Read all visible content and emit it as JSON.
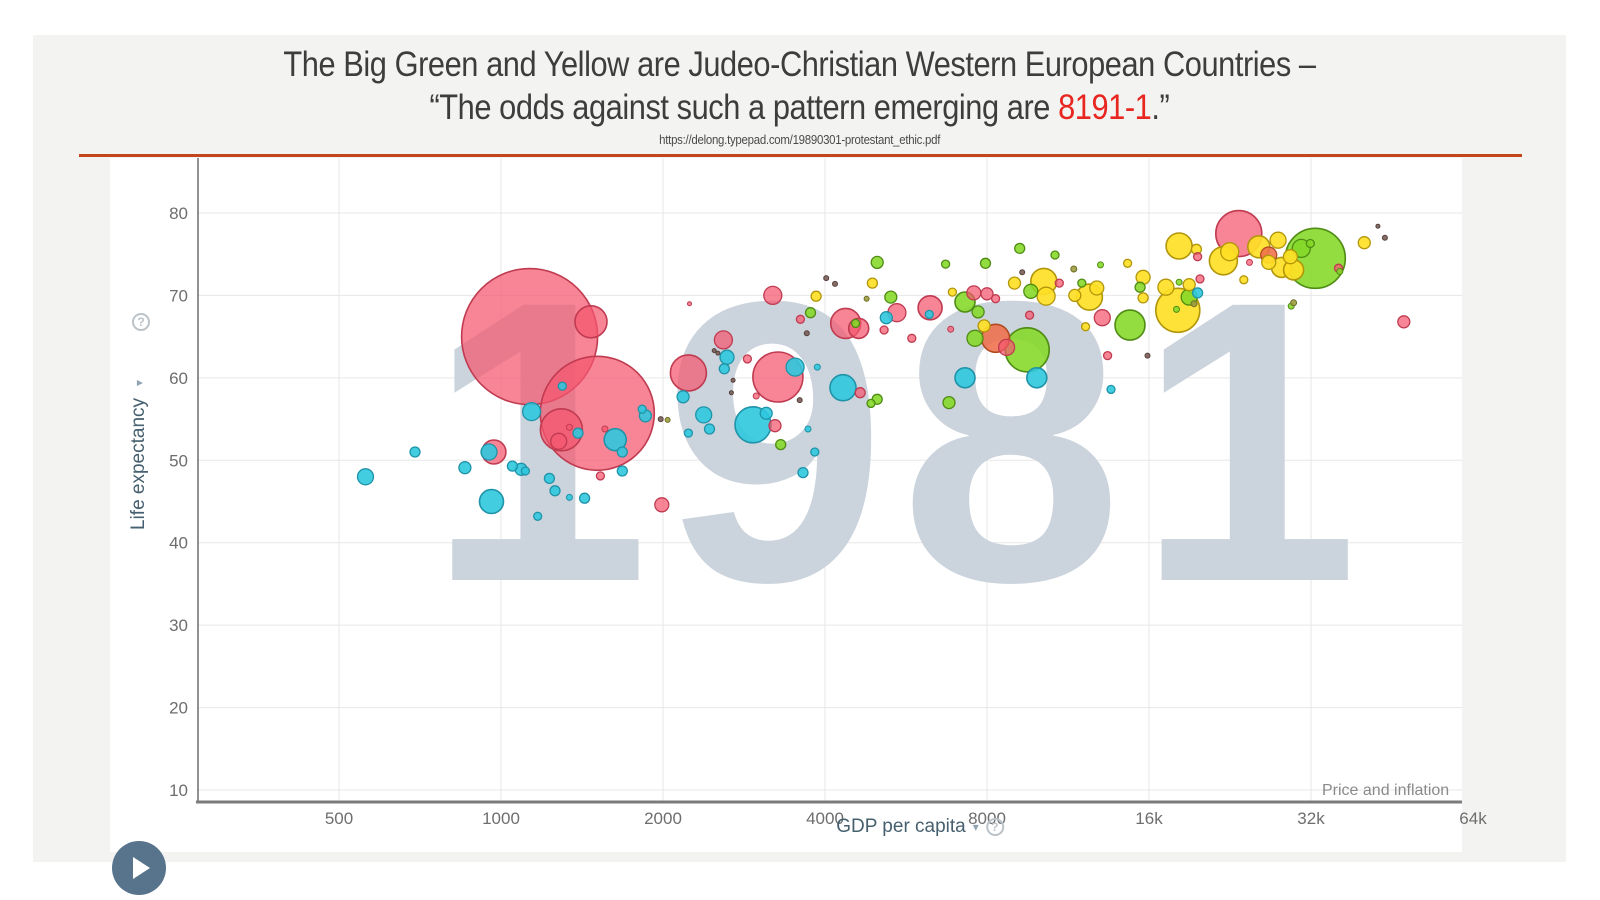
{
  "slide": {
    "title_line1": "The Big Green and Yellow are Judeo-Christian Western European Countries –",
    "title_line2_before": "“The odds against such a pattern emerging are ",
    "title_line2_highlight": "8191-1",
    "title_line2_after": ".”",
    "title_color": "#3d3d3d",
    "highlight_color": "#e8251f",
    "source_url": "https://delong.typepad.com/19890301-protestant_ethic.pdf",
    "divider_color": "#c2451c",
    "background": "#f3f3f1"
  },
  "chart": {
    "x_axis_label": "GDP per capita",
    "y_axis_label": "Life expectancy",
    "caret_glyph": "▾",
    "help_glyph": "?",
    "annotation": "Price and inflation",
    "watermark": "1981",
    "watermark_color": "#cbd3dc"
  },
  "chart_data": {
    "type": "scatter",
    "subtype": "bubble",
    "title": "",
    "xlabel": "GDP per capita",
    "ylabel": "Life expectancy",
    "x_scale": "log2",
    "x_range": [
      280,
      64000
    ],
    "y_range": [
      10,
      85
    ],
    "grid": true,
    "legend": false,
    "watermark": "1981",
    "annotation": "Price and inflation",
    "x_ticks": [
      {
        "value": 500,
        "label": "500"
      },
      {
        "value": 1000,
        "label": "1000"
      },
      {
        "value": 2000,
        "label": "2000"
      },
      {
        "value": 4000,
        "label": "4000"
      },
      {
        "value": 8000,
        "label": "8000"
      },
      {
        "value": 16000,
        "label": "16k"
      },
      {
        "value": 32000,
        "label": "32k"
      },
      {
        "value": 64000,
        "label": "64k"
      }
    ],
    "y_ticks": [
      10,
      20,
      30,
      40,
      50,
      60,
      70,
      80
    ],
    "palette": {
      "red": {
        "fill": "#f4566d",
        "stroke": "#c03a50",
        "opacity": 0.72
      },
      "cyan": {
        "fill": "#2fc8de",
        "stroke": "#1f93a8",
        "opacity": 0.9
      },
      "green": {
        "fill": "#84d827",
        "stroke": "#4f8c14",
        "opacity": 0.88
      },
      "yellow": {
        "fill": "#ffdf26",
        "stroke": "#b2960a",
        "opacity": 0.92
      },
      "orange": {
        "fill": "#ef6e4b",
        "stroke": "#b04a20",
        "opacity": 0.88
      },
      "dark": {
        "fill": "#7a5c55",
        "stroke": "#54403b",
        "opacity": 0.9
      },
      "olive": {
        "fill": "#9c9c40",
        "stroke": "#6d6d25",
        "opacity": 0.9
      }
    },
    "bubble_fields": [
      "gdp_per_capita",
      "life_expectancy",
      "radius_px",
      "color"
    ],
    "bubbles": [
      [
        1130,
        65,
        68,
        "red"
      ],
      [
        1470,
        66.8,
        16,
        "red"
      ],
      [
        1510,
        55.7,
        57,
        "red"
      ],
      [
        1295,
        53.7,
        21,
        "red"
      ],
      [
        1280,
        52.3,
        8,
        "red"
      ],
      [
        1340,
        54,
        3,
        "red"
      ],
      [
        1560,
        53.8,
        3,
        "red"
      ],
      [
        970,
        51,
        12,
        "red"
      ],
      [
        1990,
        44.6,
        7,
        "red"
      ],
      [
        1530,
        48.1,
        4,
        "red"
      ],
      [
        2230,
        60.6,
        18,
        "red"
      ],
      [
        2590,
        64.6,
        9,
        "red"
      ],
      [
        2870,
        62.3,
        4,
        "red"
      ],
      [
        3200,
        70,
        9,
        "red"
      ],
      [
        3270,
        60.1,
        25,
        "red"
      ],
      [
        2980,
        57.8,
        3,
        "red"
      ],
      [
        3230,
        54.2,
        6,
        "red"
      ],
      [
        4650,
        58.2,
        5,
        "red"
      ],
      [
        3600,
        67.1,
        4,
        "red"
      ],
      [
        4370,
        66.6,
        15,
        "red"
      ],
      [
        4620,
        66,
        10,
        "red"
      ],
      [
        5440,
        67.9,
        9,
        "red"
      ],
      [
        5150,
        65.8,
        4,
        "red"
      ],
      [
        5800,
        64.8,
        4,
        "red"
      ],
      [
        6270,
        68.5,
        12,
        "red"
      ],
      [
        6850,
        65.9,
        3,
        "red"
      ],
      [
        7560,
        70.3,
        7,
        "red"
      ],
      [
        8000,
        70.2,
        6,
        "red"
      ],
      [
        8300,
        69.6,
        4,
        "red"
      ],
      [
        9600,
        67.6,
        4,
        "red"
      ],
      [
        13100,
        67.3,
        8,
        "red"
      ],
      [
        13400,
        62.7,
        4,
        "red"
      ],
      [
        8700,
        63.7,
        8,
        "red"
      ],
      [
        19700,
        74.7,
        4,
        "red"
      ],
      [
        19900,
        72,
        4,
        "red"
      ],
      [
        23500,
        77.5,
        23,
        "red"
      ],
      [
        24600,
        74,
        3,
        "red"
      ],
      [
        36000,
        73.3,
        4,
        "red"
      ],
      [
        47600,
        66.8,
        6,
        "red"
      ],
      [
        10900,
        71.5,
        4,
        "red"
      ],
      [
        2240,
        69,
        2,
        "red"
      ],
      [
        8300,
        64.8,
        14,
        "orange"
      ],
      [
        26700,
        74.9,
        8,
        "orange"
      ],
      [
        560,
        48,
        8,
        "cyan"
      ],
      [
        692,
        51,
        5,
        "cyan"
      ],
      [
        857,
        49.1,
        6,
        "cyan"
      ],
      [
        950,
        51,
        8,
        "cyan"
      ],
      [
        960,
        45,
        12,
        "cyan"
      ],
      [
        1050,
        49.3,
        5,
        "cyan"
      ],
      [
        1090,
        48.9,
        6,
        "cyan"
      ],
      [
        1110,
        48.7,
        4,
        "cyan"
      ],
      [
        1140,
        55.9,
        9,
        "cyan"
      ],
      [
        1230,
        47.8,
        5,
        "cyan"
      ],
      [
        1260,
        46.3,
        5,
        "cyan"
      ],
      [
        1170,
        43.2,
        4,
        "cyan"
      ],
      [
        1300,
        59,
        4,
        "cyan"
      ],
      [
        1340,
        45.5,
        3,
        "cyan"
      ],
      [
        1430,
        45.4,
        5,
        "cyan"
      ],
      [
        1390,
        53.3,
        5,
        "cyan"
      ],
      [
        1630,
        52.5,
        11,
        "cyan"
      ],
      [
        1680,
        51,
        5,
        "cyan"
      ],
      [
        1680,
        48.7,
        5,
        "cyan"
      ],
      [
        1830,
        56.2,
        4,
        "cyan"
      ],
      [
        1855,
        55.4,
        6,
        "cyan"
      ],
      [
        2180,
        57.7,
        6,
        "cyan"
      ],
      [
        2380,
        55.5,
        8,
        "cyan"
      ],
      [
        2440,
        53.8,
        5,
        "cyan"
      ],
      [
        2230,
        53.3,
        4,
        "cyan"
      ],
      [
        2630,
        62.5,
        7,
        "cyan"
      ],
      [
        2600,
        61.1,
        5,
        "cyan"
      ],
      [
        2940,
        54.3,
        18,
        "cyan"
      ],
      [
        3110,
        55.7,
        6,
        "cyan"
      ],
      [
        3520,
        61.3,
        9,
        "cyan"
      ],
      [
        3870,
        61.3,
        3,
        "cyan"
      ],
      [
        4320,
        58.8,
        13,
        "cyan"
      ],
      [
        3720,
        53.8,
        3,
        "cyan"
      ],
      [
        3640,
        48.5,
        5,
        "cyan"
      ],
      [
        3830,
        51,
        4,
        "cyan"
      ],
      [
        5200,
        67.3,
        6,
        "cyan"
      ],
      [
        6250,
        67.7,
        4,
        "cyan"
      ],
      [
        7280,
        60,
        10,
        "cyan"
      ],
      [
        9900,
        60,
        10,
        "cyan"
      ],
      [
        13600,
        58.6,
        4,
        "cyan"
      ],
      [
        19700,
        70.3,
        5,
        "cyan"
      ],
      [
        3310,
        51.9,
        5,
        "green"
      ],
      [
        5000,
        57.4,
        5,
        "green"
      ],
      [
        4870,
        56.9,
        4,
        "green"
      ],
      [
        6800,
        57,
        6,
        "green"
      ],
      [
        3760,
        67.9,
        5,
        "green"
      ],
      [
        5300,
        69.8,
        6,
        "green"
      ],
      [
        4560,
        66.6,
        4,
        "green"
      ],
      [
        5000,
        74,
        6,
        "green"
      ],
      [
        6700,
        73.8,
        4,
        "green"
      ],
      [
        7950,
        73.9,
        5,
        "green"
      ],
      [
        9200,
        75.7,
        5,
        "green"
      ],
      [
        10700,
        74.9,
        4,
        "green"
      ],
      [
        7280,
        69.2,
        10,
        "green"
      ],
      [
        7700,
        68,
        6,
        "green"
      ],
      [
        7600,
        64.8,
        8,
        "green"
      ],
      [
        9650,
        70.5,
        7,
        "green"
      ],
      [
        9500,
        63.4,
        22,
        "green"
      ],
      [
        12000,
        71.5,
        4,
        "green"
      ],
      [
        13000,
        73.7,
        3,
        "green"
      ],
      [
        14750,
        66.4,
        15,
        "green"
      ],
      [
        15400,
        71,
        5,
        "green"
      ],
      [
        18000,
        68.3,
        3,
        "green"
      ],
      [
        19000,
        69.8,
        8,
        "green"
      ],
      [
        18200,
        71.6,
        3,
        "green"
      ],
      [
        30700,
        75.7,
        9,
        "green"
      ],
      [
        31900,
        76.3,
        4,
        "green"
      ],
      [
        32600,
        74.5,
        30,
        "green"
      ],
      [
        36200,
        72.9,
        3,
        "green"
      ],
      [
        29400,
        68.7,
        3,
        "green"
      ],
      [
        3850,
        69.9,
        5,
        "yellow"
      ],
      [
        4900,
        71.5,
        5,
        "yellow"
      ],
      [
        6900,
        70.4,
        4,
        "yellow"
      ],
      [
        7900,
        66.3,
        6,
        "yellow"
      ],
      [
        9000,
        71.5,
        6,
        "yellow"
      ],
      [
        10200,
        71.7,
        13,
        "yellow"
      ],
      [
        10300,
        69.9,
        9,
        "yellow"
      ],
      [
        12200,
        66.2,
        4,
        "yellow"
      ],
      [
        12400,
        69.8,
        13,
        "yellow"
      ],
      [
        12800,
        70.9,
        7,
        "yellow"
      ],
      [
        14600,
        73.9,
        4,
        "yellow"
      ],
      [
        15600,
        72.2,
        7,
        "yellow"
      ],
      [
        15600,
        69.7,
        5,
        "yellow"
      ],
      [
        17200,
        71,
        8,
        "yellow"
      ],
      [
        18100,
        68.2,
        22,
        "yellow"
      ],
      [
        18200,
        76,
        13,
        "yellow"
      ],
      [
        19600,
        75.6,
        5,
        "yellow"
      ],
      [
        19000,
        71.3,
        6,
        "yellow"
      ],
      [
        22000,
        74.2,
        14,
        "yellow"
      ],
      [
        22600,
        75.3,
        9,
        "yellow"
      ],
      [
        24000,
        71.9,
        4,
        "yellow"
      ],
      [
        25600,
        75.9,
        11,
        "yellow"
      ],
      [
        27800,
        76.7,
        8,
        "yellow"
      ],
      [
        28200,
        73.4,
        10,
        "yellow"
      ],
      [
        29300,
        74.7,
        7,
        "yellow"
      ],
      [
        26700,
        74,
        7,
        "yellow"
      ],
      [
        29700,
        73.1,
        10,
        "yellow"
      ],
      [
        40200,
        76.4,
        6,
        "yellow"
      ],
      [
        11650,
        70,
        6,
        "yellow"
      ],
      [
        4175,
        71.4,
        2.5,
        "dark"
      ],
      [
        4020,
        72.1,
        2.5,
        "dark"
      ],
      [
        3700,
        65.4,
        2.5,
        "dark"
      ],
      [
        9300,
        72.8,
        2.5,
        "dark"
      ],
      [
        2490,
        63.3,
        2,
        "dark"
      ],
      [
        2530,
        63,
        2,
        "dark"
      ],
      [
        2700,
        59.7,
        2,
        "dark"
      ],
      [
        2680,
        58.2,
        2,
        "dark"
      ],
      [
        3590,
        57.3,
        2.5,
        "dark"
      ],
      [
        1980,
        55,
        2.5,
        "dark"
      ],
      [
        15900,
        62.7,
        2.5,
        "dark"
      ],
      [
        42600,
        78.4,
        2,
        "dark"
      ],
      [
        43900,
        77,
        2.5,
        "dark"
      ],
      [
        4780,
        69.6,
        2.5,
        "olive"
      ],
      [
        11600,
        73.2,
        3,
        "olive"
      ],
      [
        19400,
        69,
        3,
        "olive"
      ],
      [
        29700,
        69.1,
        3,
        "olive"
      ],
      [
        2040,
        54.9,
        2.5,
        "olive"
      ]
    ]
  }
}
